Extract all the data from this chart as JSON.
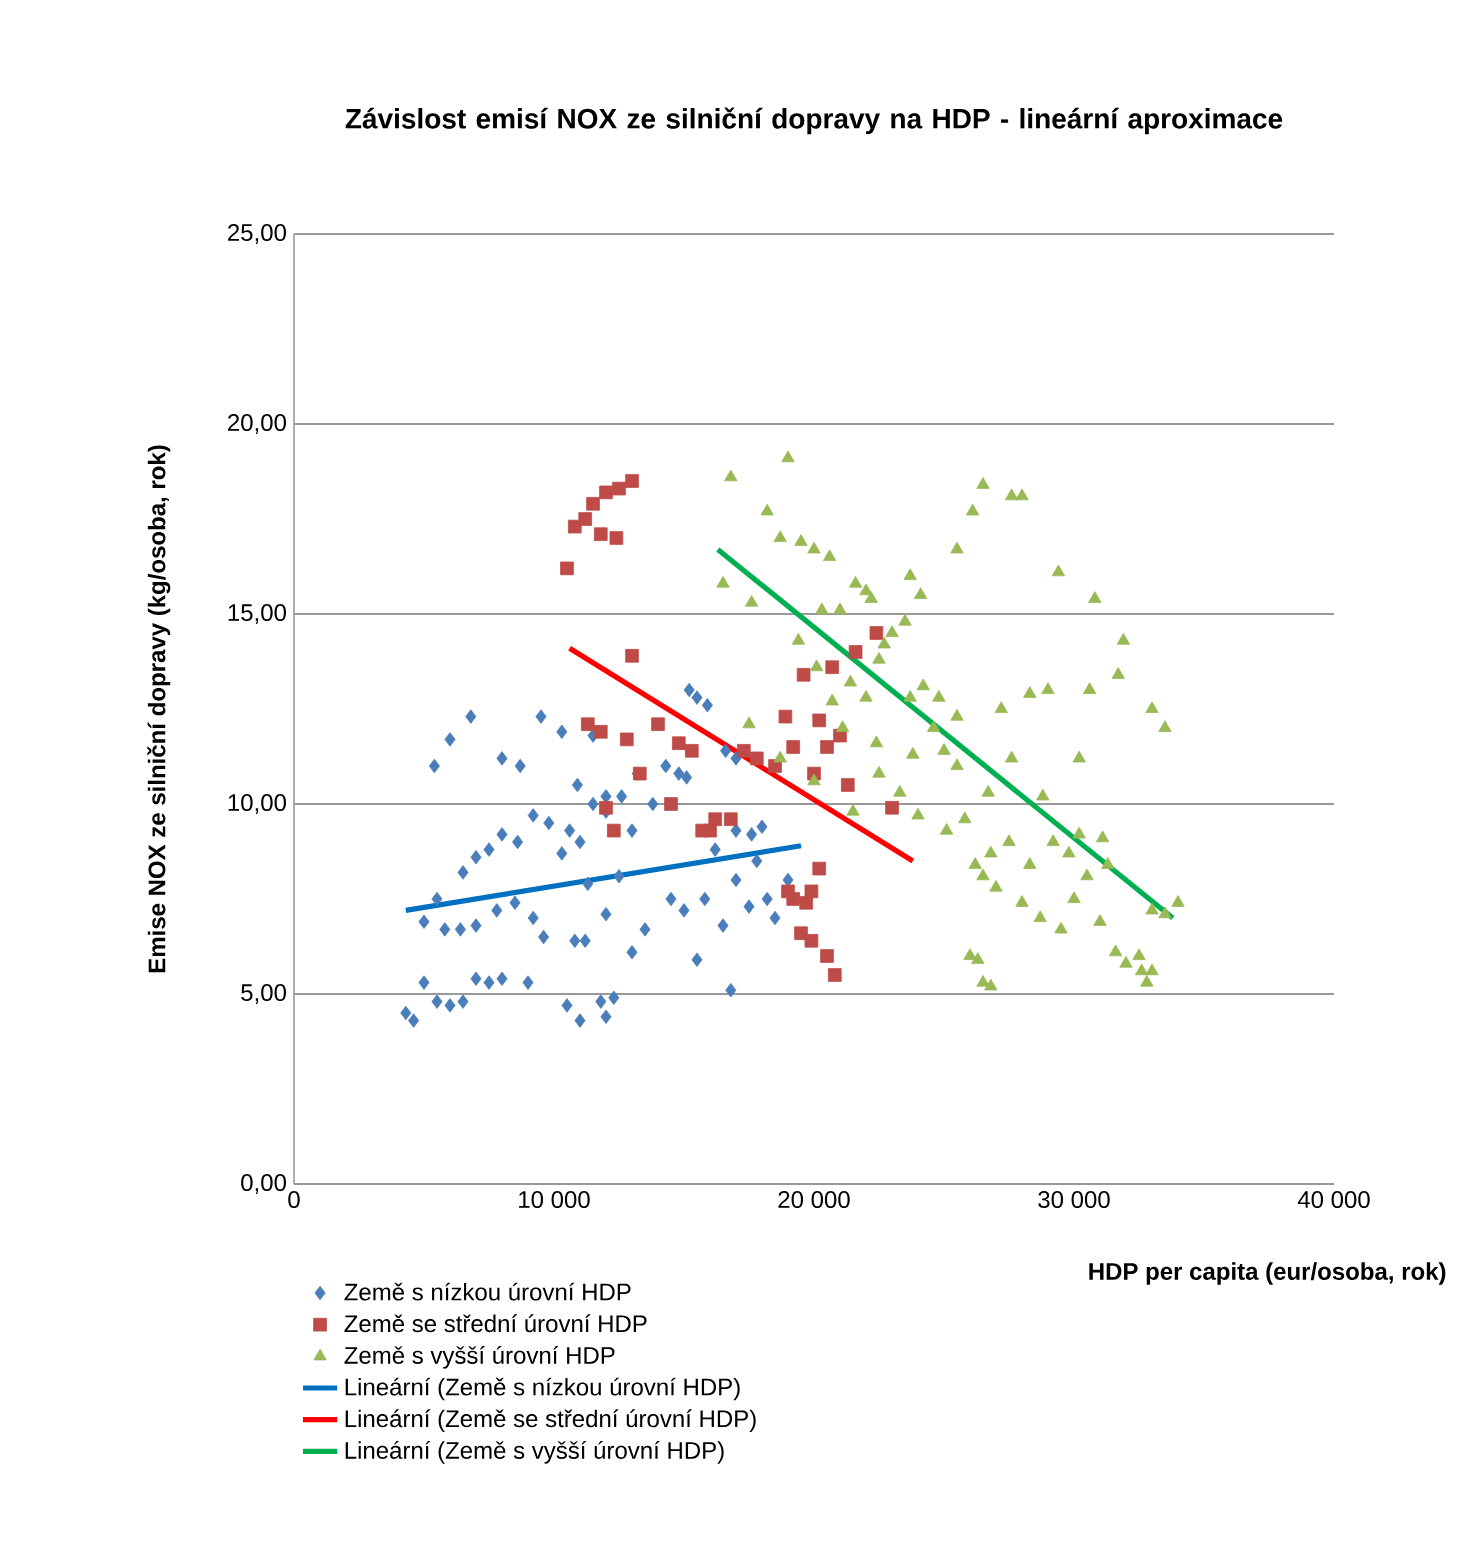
{
  "chart_data": {
    "type": "scatter",
    "title": "Závislost emisí NOX ze silniční dopravy na HDP - lineární aproximace",
    "xlabel": "HDP per capita (eur/osoba, rok)",
    "ylabel": "Emise NOX ze silniční dopravy (kg/osoba, rok)",
    "xlim": [
      0,
      40000
    ],
    "ylim": [
      0,
      25
    ],
    "xticks": [
      {
        "value": 0,
        "label": "0"
      },
      {
        "value": 10000,
        "label": "10 000"
      },
      {
        "value": 20000,
        "label": "20 000"
      },
      {
        "value": 30000,
        "label": "30 000"
      },
      {
        "value": 40000,
        "label": "40 000"
      }
    ],
    "yticks": [
      {
        "value": 0,
        "label": "0,00"
      },
      {
        "value": 5,
        "label": "5,00"
      },
      {
        "value": 10,
        "label": "10,00"
      },
      {
        "value": 15,
        "label": "15,00"
      },
      {
        "value": 20,
        "label": "20,00"
      },
      {
        "value": 25,
        "label": "25,00"
      }
    ],
    "grid": "y",
    "legend": "bottom",
    "series": [
      {
        "name": "Země s nízkou úrovní HDP",
        "marker": "diamond",
        "color": "#4a7ebb",
        "x": [
          4300,
          4600,
          5000,
          5500,
          6000,
          6500,
          7000,
          7500,
          8000,
          9000,
          10500,
          11000,
          11800,
          12000,
          12300,
          10800,
          11200,
          13000,
          15500,
          16800,
          5000,
          5800,
          6400,
          7000,
          7800,
          8500,
          9200,
          9600,
          11300,
          12000,
          12500,
          13500,
          14500,
          15000,
          15800,
          16500,
          17000,
          17500,
          18500,
          19000,
          18200,
          17800,
          5500,
          6500,
          7000,
          7500,
          8000,
          8600,
          9200,
          9800,
          10300,
          10600,
          11000,
          11500,
          12000,
          12600,
          13200,
          13800,
          14300,
          14800,
          15100,
          16200,
          17000,
          17600,
          18000,
          5400,
          6000,
          6800,
          8000,
          8700,
          9500,
          10300,
          10900,
          11500,
          15200,
          15500,
          15900,
          16600,
          17000,
          12000,
          13000
        ],
        "values": [
          4.5,
          4.3,
          5.3,
          4.8,
          4.7,
          4.8,
          5.4,
          5.3,
          5.4,
          5.3,
          4.7,
          4.3,
          4.8,
          4.4,
          4.9,
          6.4,
          6.4,
          6.1,
          5.9,
          5.1,
          6.9,
          6.7,
          6.7,
          6.8,
          7.2,
          7.4,
          7.0,
          6.5,
          7.9,
          7.1,
          8.1,
          6.7,
          7.5,
          7.2,
          7.5,
          6.8,
          8.0,
          7.3,
          7.0,
          8.0,
          7.5,
          8.5,
          7.5,
          8.2,
          8.6,
          8.8,
          9.2,
          9.0,
          9.7,
          9.5,
          8.7,
          9.3,
          9.0,
          10.0,
          9.8,
          10.2,
          10.8,
          10.0,
          11.0,
          10.8,
          10.7,
          8.8,
          9.3,
          9.2,
          9.4,
          11.0,
          11.7,
          12.3,
          11.2,
          11.0,
          12.3,
          11.9,
          10.5,
          11.8,
          13.0,
          12.8,
          12.6,
          11.4,
          11.2,
          10.2,
          9.3
        ]
      },
      {
        "name": "Země se střední úrovní HDP",
        "marker": "square",
        "color": "#be4b48",
        "x": [
          10500,
          10800,
          11200,
          11500,
          12000,
          12500,
          13000,
          11800,
          12400,
          13000,
          11300,
          11800,
          12000,
          12300,
          12800,
          13300,
          14000,
          14800,
          14500,
          15300,
          15700,
          16200,
          16800,
          17300,
          17800,
          18500,
          18900,
          19200,
          20000,
          20200,
          20500,
          21000,
          21300,
          21600,
          22400,
          19600,
          20700,
          19200,
          19500,
          19700,
          19900,
          20200,
          19900,
          20500,
          20800,
          19000,
          23000,
          16000
        ],
        "values": [
          16.2,
          17.3,
          17.5,
          17.9,
          18.2,
          18.3,
          18.5,
          17.1,
          17.0,
          13.9,
          12.1,
          11.9,
          9.9,
          9.3,
          11.7,
          10.8,
          12.1,
          11.6,
          10.0,
          11.4,
          9.3,
          9.6,
          9.6,
          11.4,
          11.2,
          11.0,
          12.3,
          11.5,
          10.8,
          12.2,
          11.5,
          11.8,
          10.5,
          14.0,
          14.5,
          13.4,
          13.6,
          7.5,
          6.6,
          7.4,
          7.7,
          8.3,
          6.4,
          6.0,
          5.5,
          7.7,
          9.9,
          9.3
        ]
      },
      {
        "name": "Země s vyšší úrovní HDP",
        "marker": "triangle",
        "color": "#98b954",
        "x": [
          16800,
          16500,
          17600,
          18200,
          19000,
          18700,
          19500,
          20000,
          20300,
          20600,
          21000,
          21600,
          22000,
          22200,
          22500,
          19400,
          20100,
          20700,
          21100,
          21400,
          22000,
          23000,
          23500,
          23700,
          24200,
          24600,
          25000,
          25500,
          23800,
          22400,
          17500,
          18700,
          20000,
          21500,
          22500,
          23300,
          24000,
          25100,
          25800,
          26200,
          26800,
          27500,
          28300,
          26500,
          27000,
          28000,
          28700,
          29500,
          30000,
          30500,
          31000,
          31600,
          32000,
          32600,
          33000,
          32800,
          26300,
          26500,
          26800,
          26000,
          29200,
          29800,
          30200,
          31100,
          31300,
          26700,
          27600,
          28300,
          29000,
          30600,
          31900,
          31700,
          33000,
          33500,
          26100,
          25500,
          26500,
          27600,
          28000,
          29400,
          30800,
          24100,
          23700,
          22700,
          24800,
          25500,
          27200,
          28800,
          30200,
          32500,
          33000,
          33500,
          34000
        ],
        "values": [
          18.6,
          15.8,
          15.3,
          17.7,
          19.1,
          17.0,
          16.9,
          16.7,
          15.1,
          16.5,
          15.1,
          15.8,
          15.6,
          15.4,
          13.8,
          14.3,
          13.6,
          12.7,
          12.0,
          13.2,
          12.8,
          14.5,
          14.8,
          12.8,
          13.1,
          12.0,
          11.4,
          11.0,
          11.3,
          11.6,
          12.1,
          11.2,
          10.6,
          9.8,
          10.8,
          10.3,
          9.7,
          9.3,
          9.6,
          8.4,
          8.7,
          9.0,
          8.4,
          8.1,
          7.8,
          7.4,
          7.0,
          6.7,
          7.5,
          8.1,
          6.9,
          6.1,
          5.8,
          5.6,
          5.6,
          5.3,
          5.9,
          5.3,
          5.2,
          6.0,
          9.0,
          8.7,
          9.2,
          9.1,
          8.4,
          10.3,
          11.2,
          12.9,
          13.0,
          13.0,
          14.3,
          13.4,
          12.5,
          12.0,
          17.7,
          16.7,
          18.4,
          18.1,
          18.1,
          16.1,
          15.4,
          15.5,
          16.0,
          14.2,
          12.8,
          12.3,
          12.5,
          10.2,
          11.2,
          6.0,
          7.2,
          7.1,
          7.4
        ]
      },
      {
        "name": "Lineární (Země s nízkou úrovní HDP)",
        "type": "line",
        "marker": "none",
        "color": "#0070c0",
        "x": [
          4300,
          19500
        ],
        "values": [
          7.2,
          8.9
        ]
      },
      {
        "name": "Lineární (Země se střední úrovní HDP)",
        "type": "line",
        "marker": "none",
        "color": "#ff0000",
        "x": [
          10600,
          23800
        ],
        "values": [
          14.1,
          8.5
        ]
      },
      {
        "name": "Lineární (Země s vyšší úrovní HDP)",
        "type": "line",
        "marker": "none",
        "color": "#00b050",
        "x": [
          16300,
          33800
        ],
        "values": [
          16.7,
          7.0
        ]
      }
    ]
  }
}
